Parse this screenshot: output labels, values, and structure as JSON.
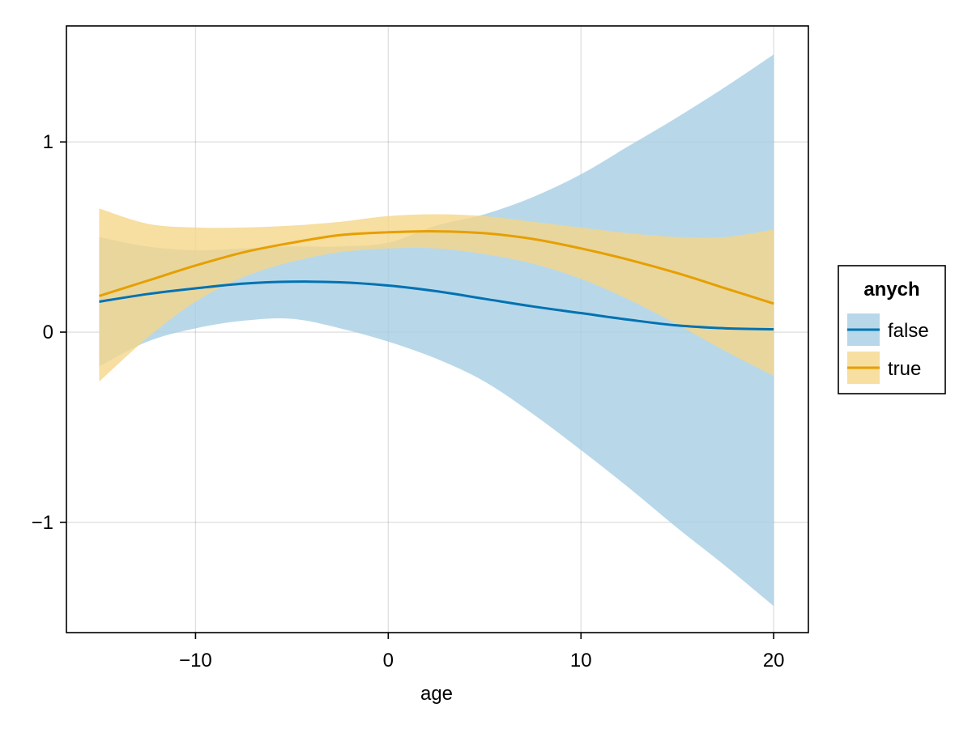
{
  "chart_data": {
    "type": "line",
    "title": "",
    "xlabel": "age",
    "ylabel": "",
    "xlim": [
      -16.7,
      21.8
    ],
    "ylim": [
      -1.58,
      1.61
    ],
    "xticks": [
      -10,
      0,
      10,
      20
    ],
    "xtick_labels": [
      "−10",
      "0",
      "10",
      "20"
    ],
    "yticks": [
      -1,
      0,
      1
    ],
    "ytick_labels": [
      "−1",
      "0",
      "1"
    ],
    "grid": true,
    "legend": {
      "title": "anych",
      "placement": "right"
    },
    "x": [
      -15,
      -12.5,
      -10,
      -7.5,
      -5,
      -2.5,
      0,
      2.5,
      5,
      7.5,
      10,
      12.5,
      15,
      17.5,
      20
    ],
    "series": [
      {
        "name": "false",
        "color": "#0072b2",
        "band_color": "#a6cee3",
        "values": [
          0.16,
          0.2,
          0.23,
          0.255,
          0.265,
          0.262,
          0.245,
          0.215,
          0.175,
          0.135,
          0.1,
          0.065,
          0.035,
          0.02,
          0.015
        ],
        "lower": [
          -0.18,
          -0.05,
          0.02,
          0.06,
          0.07,
          0.02,
          -0.05,
          -0.14,
          -0.26,
          -0.43,
          -0.62,
          -0.82,
          -1.03,
          -1.23,
          -1.44
        ],
        "upper": [
          0.5,
          0.45,
          0.43,
          0.44,
          0.45,
          0.45,
          0.47,
          0.56,
          0.62,
          0.71,
          0.83,
          0.98,
          1.13,
          1.29,
          1.46
        ]
      },
      {
        "name": "true",
        "color": "#e69f00",
        "band_color": "#f5d68a",
        "values": [
          0.19,
          0.27,
          0.35,
          0.42,
          0.47,
          0.51,
          0.525,
          0.53,
          0.52,
          0.49,
          0.44,
          0.38,
          0.31,
          0.23,
          0.15
        ],
        "lower": [
          -0.26,
          -0.03,
          0.16,
          0.29,
          0.37,
          0.42,
          0.44,
          0.44,
          0.41,
          0.36,
          0.28,
          0.17,
          0.04,
          -0.1,
          -0.23
        ],
        "upper": [
          0.65,
          0.57,
          0.55,
          0.55,
          0.56,
          0.58,
          0.61,
          0.62,
          0.61,
          0.58,
          0.55,
          0.52,
          0.5,
          0.5,
          0.54
        ]
      }
    ]
  }
}
